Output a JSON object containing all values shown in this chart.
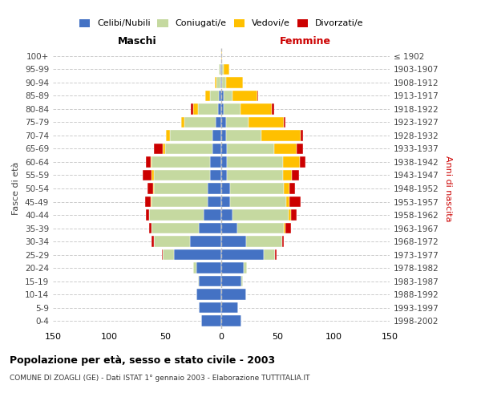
{
  "age_groups": [
    "0-4",
    "5-9",
    "10-14",
    "15-19",
    "20-24",
    "25-29",
    "30-34",
    "35-39",
    "40-44",
    "45-49",
    "50-54",
    "55-59",
    "60-64",
    "65-69",
    "70-74",
    "75-79",
    "80-84",
    "85-89",
    "90-94",
    "95-99",
    "100+"
  ],
  "birth_years": [
    "1998-2002",
    "1993-1997",
    "1988-1992",
    "1983-1987",
    "1978-1982",
    "1973-1977",
    "1968-1972",
    "1963-1967",
    "1958-1962",
    "1953-1957",
    "1948-1952",
    "1943-1947",
    "1938-1942",
    "1933-1937",
    "1928-1932",
    "1923-1927",
    "1918-1922",
    "1913-1917",
    "1908-1912",
    "1903-1907",
    "≤ 1902"
  ],
  "male_celibe": [
    18,
    20,
    22,
    20,
    22,
    42,
    28,
    20,
    16,
    12,
    12,
    10,
    10,
    8,
    8,
    5,
    3,
    2,
    1,
    1,
    0
  ],
  "male_coniugato": [
    0,
    0,
    0,
    1,
    3,
    10,
    32,
    42,
    48,
    50,
    48,
    50,
    52,
    42,
    38,
    28,
    18,
    8,
    3,
    1,
    0
  ],
  "male_vedovo": [
    0,
    0,
    0,
    0,
    0,
    0,
    0,
    0,
    0,
    1,
    1,
    2,
    1,
    2,
    3,
    3,
    4,
    4,
    2,
    0,
    0
  ],
  "male_divorziato": [
    0,
    0,
    0,
    0,
    0,
    1,
    2,
    2,
    3,
    5,
    5,
    8,
    4,
    8,
    0,
    0,
    2,
    0,
    0,
    0,
    0
  ],
  "female_celibe": [
    18,
    15,
    22,
    18,
    20,
    38,
    22,
    14,
    10,
    8,
    8,
    5,
    5,
    5,
    4,
    4,
    2,
    2,
    1,
    1,
    0
  ],
  "female_coniugato": [
    0,
    0,
    0,
    1,
    3,
    10,
    32,
    42,
    50,
    50,
    48,
    50,
    50,
    42,
    32,
    20,
    15,
    8,
    3,
    1,
    0
  ],
  "female_vedovo": [
    0,
    0,
    0,
    0,
    0,
    0,
    0,
    1,
    2,
    3,
    5,
    8,
    15,
    20,
    35,
    32,
    28,
    22,
    15,
    5,
    1
  ],
  "female_divorziato": [
    0,
    0,
    0,
    0,
    0,
    1,
    2,
    5,
    5,
    10,
    5,
    6,
    5,
    6,
    2,
    1,
    2,
    1,
    0,
    0,
    0
  ],
  "color_celibe": "#4472c4",
  "color_coniugato": "#c5d9a0",
  "color_vedovo": "#ffc000",
  "color_divorziato": "#cc0000",
  "title": "Popolazione per età, sesso e stato civile - 2003",
  "subtitle": "COMUNE DI ZOAGLI (GE) - Dati ISTAT 1° gennaio 2003 - Elaborazione TUTTITALIA.IT",
  "xlabel_left": "Maschi",
  "xlabel_right": "Femmine",
  "ylabel_left": "Fasce di età",
  "ylabel_right": "Anni di nascita",
  "xlim": 150
}
